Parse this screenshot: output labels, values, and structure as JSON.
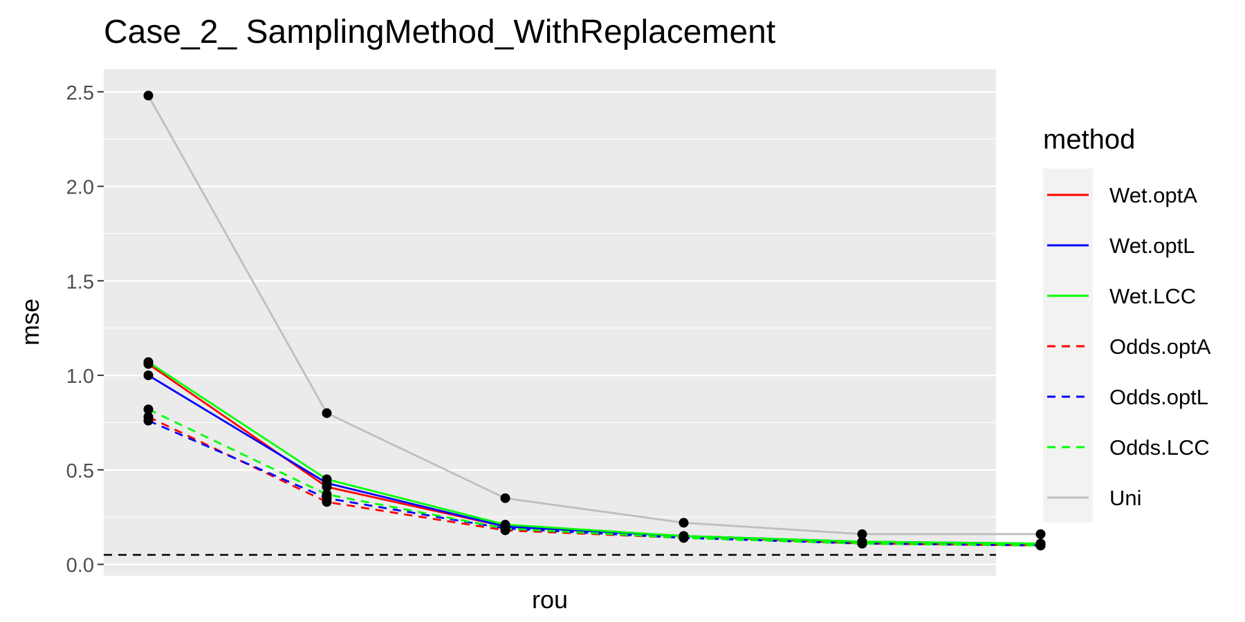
{
  "chart_data": {
    "type": "line",
    "title": "Case_2_ SamplingMethod_WithReplacement",
    "xlabel": "rou",
    "ylabel": "mse",
    "x": [
      1,
      2,
      3,
      4,
      5,
      6
    ],
    "xlim": [
      0.75,
      5.75
    ],
    "ylim": [
      -0.06,
      2.62
    ],
    "yticks": [
      0.0,
      0.5,
      1.0,
      1.5,
      2.0,
      2.5
    ],
    "ytick_labels": [
      "0.0",
      "0.5",
      "1.0",
      "1.5",
      "2.0",
      "2.5"
    ],
    "grid": true,
    "reference_line": {
      "y": 0.05,
      "style": "dashed",
      "color": "#000000"
    },
    "legend": {
      "title": "method",
      "position": "right"
    },
    "series": [
      {
        "name": "Wet.optA",
        "color": "#ff0000",
        "dashed": false,
        "values": [
          1.06,
          0.41,
          0.2,
          0.15,
          0.11,
          0.1
        ]
      },
      {
        "name": "Wet.optL",
        "color": "#0000ff",
        "dashed": false,
        "values": [
          1.0,
          0.43,
          0.2,
          0.15,
          0.12,
          0.11
        ]
      },
      {
        "name": "Wet.LCC",
        "color": "#00ff00",
        "dashed": false,
        "values": [
          1.07,
          0.45,
          0.21,
          0.15,
          0.12,
          0.11
        ]
      },
      {
        "name": "Odds.optA",
        "color": "#ff0000",
        "dashed": true,
        "values": [
          0.78,
          0.33,
          0.18,
          0.14,
          0.11,
          0.1
        ]
      },
      {
        "name": "Odds.optL",
        "color": "#0000ff",
        "dashed": true,
        "values": [
          0.76,
          0.35,
          0.19,
          0.14,
          0.11,
          0.1
        ]
      },
      {
        "name": "Odds.LCC",
        "color": "#00ff00",
        "dashed": true,
        "values": [
          0.82,
          0.37,
          0.19,
          0.14,
          0.11,
          0.1
        ]
      },
      {
        "name": "Uni",
        "color": "#bebebe",
        "dashed": false,
        "values": [
          2.48,
          0.8,
          0.35,
          0.22,
          0.16,
          0.16
        ]
      }
    ]
  }
}
